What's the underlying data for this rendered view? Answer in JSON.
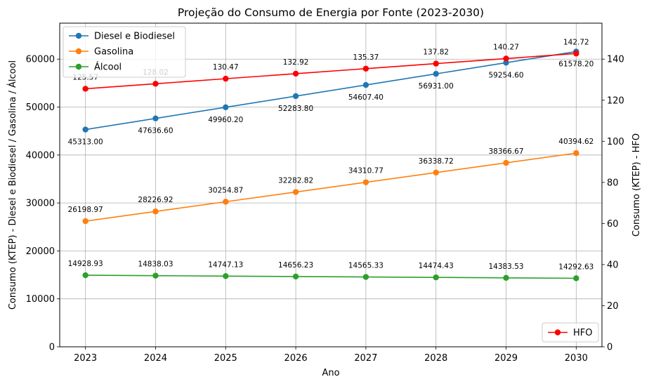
{
  "chart_data": {
    "type": "line",
    "title": "Projeção do Consumo de Energia por Fonte (2023-2030)",
    "xlabel": "Ano",
    "ylabel": "Consumo (KTEP) - Diesel e Biodiesel / Gasolina / Álcool",
    "ylabel_right": "Consumo (KTEP) - HFO",
    "x": [
      "2023",
      "2024",
      "2025",
      "2026",
      "2027",
      "2028",
      "2029",
      "2030"
    ],
    "ylim": [
      0,
      67500
    ],
    "ylim_right": [
      0,
      157.5
    ],
    "yticks_left": [
      "0",
      "10000",
      "20000",
      "30000",
      "40000",
      "50000",
      "60000"
    ],
    "yticks_right": [
      "0",
      "20",
      "40",
      "60",
      "80",
      "100",
      "120",
      "140"
    ],
    "grid": true,
    "series": [
      {
        "name": "Diesel e Biodiesel",
        "axis": "left",
        "color": "#1f77b4",
        "values": [
          45313.0,
          47636.6,
          49960.2,
          52283.8,
          54607.4,
          56931.0,
          59254.6,
          61578.2
        ],
        "labels": [
          "45313.00",
          "47636.60",
          "49960.20",
          "52283.80",
          "54607.40",
          "56931.00",
          "59254.60",
          "61578.20"
        ]
      },
      {
        "name": "Gasolina",
        "axis": "left",
        "color": "#ff7f0e",
        "values": [
          26198.97,
          28226.92,
          30254.87,
          32282.82,
          34310.77,
          36338.72,
          38366.67,
          40394.62
        ],
        "labels": [
          "26198.97",
          "28226.92",
          "30254.87",
          "32282.82",
          "34310.77",
          "36338.72",
          "38366.67",
          "40394.62"
        ]
      },
      {
        "name": "Álcool",
        "axis": "left",
        "color": "#2ca02c",
        "values": [
          14928.93,
          14838.03,
          14747.13,
          14656.23,
          14565.33,
          14474.43,
          14383.53,
          14292.63
        ],
        "labels": [
          "14928.93",
          "14838.03",
          "14747.13",
          "14656.23",
          "14565.33",
          "14474.43",
          "14383.53",
          "14292.63"
        ]
      },
      {
        "name": "HFO",
        "axis": "right",
        "color": "#ff0000",
        "values": [
          125.57,
          128.02,
          130.47,
          132.92,
          135.37,
          137.82,
          140.27,
          142.72
        ],
        "labels": [
          "125.57",
          "128.02",
          "130.47",
          "132.92",
          "135.37",
          "137.82",
          "140.27",
          "142.72"
        ]
      }
    ],
    "legend_left": {
      "placement": "top-left",
      "entries": [
        "Diesel e Biodiesel",
        "Gasolina",
        "Álcool"
      ]
    },
    "legend_right": {
      "placement": "bottom-right",
      "entries": [
        "HFO"
      ]
    }
  }
}
